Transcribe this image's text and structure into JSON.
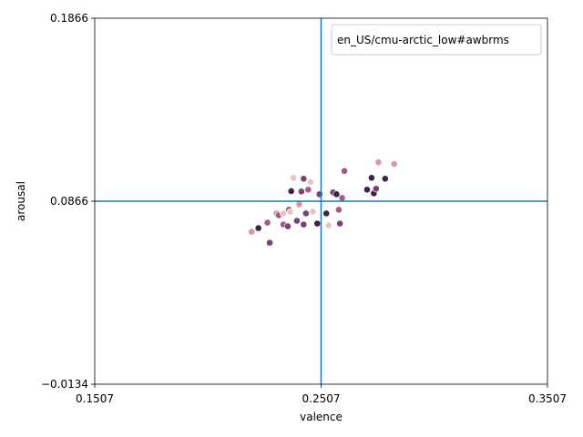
{
  "chart_data": {
    "type": "scatter",
    "xlabel": "valence",
    "ylabel": "arousal",
    "xlim": [
      0.1507,
      0.3507
    ],
    "ylim": [
      -0.0134,
      0.1866
    ],
    "xticks": [
      "0.1507",
      "0.2507",
      "0.3507"
    ],
    "yticks": [
      "−0.0134",
      "0.0866",
      "0.1866"
    ],
    "xtick_values": [
      0.1507,
      0.2507,
      0.3507
    ],
    "ytick_values": [
      -0.0134,
      0.0866,
      0.1866
    ],
    "reference_lines": {
      "x": 0.2507,
      "y": 0.0866,
      "color": "#1f77b4"
    },
    "legend": {
      "label": "en_US/cmu-arctic_low#awbrms",
      "position": "top-right"
    },
    "grid": false,
    "colors": [
      "#e8c4c9",
      "#d69aa6",
      "#a55a85",
      "#7a3f75",
      "#3e2149"
    ],
    "points": [
      {
        "x": 0.22,
        "y": 0.0699,
        "c": 1
      },
      {
        "x": 0.223,
        "y": 0.0719,
        "c": 4
      },
      {
        "x": 0.227,
        "y": 0.0749,
        "c": 2
      },
      {
        "x": 0.228,
        "y": 0.0639,
        "c": 3
      },
      {
        "x": 0.231,
        "y": 0.0799,
        "c": 1
      },
      {
        "x": 0.232,
        "y": 0.0789,
        "c": 2
      },
      {
        "x": 0.234,
        "y": 0.0799,
        "c": 0
      },
      {
        "x": 0.234,
        "y": 0.0739,
        "c": 2
      },
      {
        "x": 0.236,
        "y": 0.0729,
        "c": 3
      },
      {
        "x": 0.2365,
        "y": 0.0819,
        "c": 3
      },
      {
        "x": 0.237,
        "y": 0.0808,
        "c": 0
      },
      {
        "x": 0.2375,
        "y": 0.0921,
        "c": 4
      },
      {
        "x": 0.2385,
        "y": 0.0994,
        "c": 0
      },
      {
        "x": 0.24,
        "y": 0.0759,
        "c": 3
      },
      {
        "x": 0.241,
        "y": 0.0849,
        "c": 1
      },
      {
        "x": 0.242,
        "y": 0.0919,
        "c": 3
      },
      {
        "x": 0.243,
        "y": 0.0989,
        "c": 3
      },
      {
        "x": 0.243,
        "y": 0.0739,
        "c": 3
      },
      {
        "x": 0.244,
        "y": 0.0799,
        "c": 3
      },
      {
        "x": 0.245,
        "y": 0.0929,
        "c": 2
      },
      {
        "x": 0.246,
        "y": 0.0971,
        "c": 0
      },
      {
        "x": 0.247,
        "y": 0.0809,
        "c": 0
      },
      {
        "x": 0.249,
        "y": 0.0744,
        "c": 4
      },
      {
        "x": 0.25,
        "y": 0.0904,
        "c": 3
      },
      {
        "x": 0.253,
        "y": 0.0799,
        "c": 4
      },
      {
        "x": 0.254,
        "y": 0.0734,
        "c": 0
      },
      {
        "x": 0.256,
        "y": 0.0914,
        "c": 3
      },
      {
        "x": 0.2575,
        "y": 0.0904,
        "c": 4
      },
      {
        "x": 0.2585,
        "y": 0.0819,
        "c": 2
      },
      {
        "x": 0.259,
        "y": 0.0744,
        "c": 3
      },
      {
        "x": 0.26,
        "y": 0.0884,
        "c": 2
      },
      {
        "x": 0.261,
        "y": 0.1031,
        "c": 2
      },
      {
        "x": 0.271,
        "y": 0.0929,
        "c": 4
      },
      {
        "x": 0.273,
        "y": 0.0994,
        "c": 4
      },
      {
        "x": 0.274,
        "y": 0.0909,
        "c": 4
      },
      {
        "x": 0.275,
        "y": 0.0934,
        "c": 3
      },
      {
        "x": 0.276,
        "y": 0.1079,
        "c": 1
      },
      {
        "x": 0.279,
        "y": 0.0989,
        "c": 4
      },
      {
        "x": 0.283,
        "y": 0.1069,
        "c": 1
      }
    ]
  }
}
